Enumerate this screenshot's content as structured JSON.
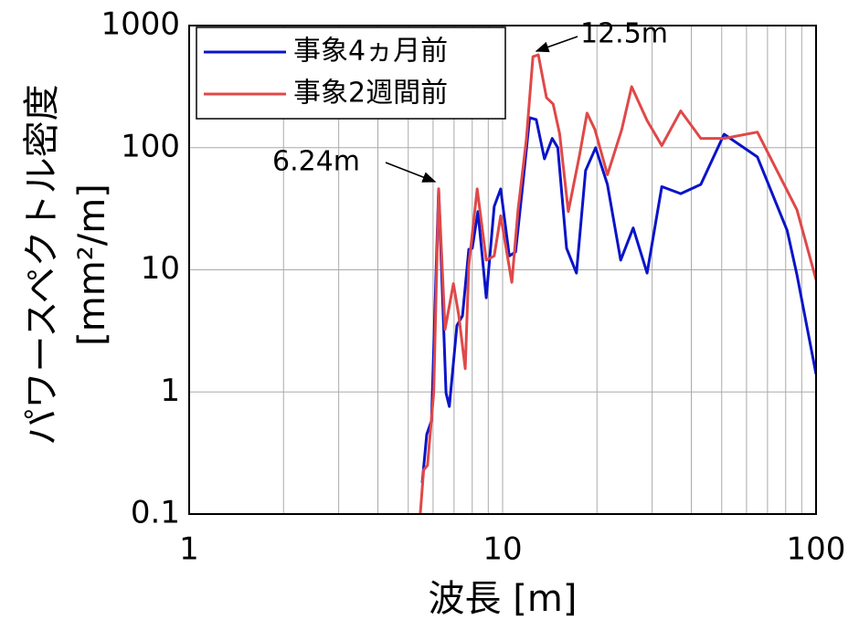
{
  "chart_data": {
    "type": "line",
    "xlabel": "波長 [m]",
    "ylabel": [
      "パワースペクトル密度",
      "[mm²/m]"
    ],
    "xscale": "log",
    "yscale": "log",
    "xlim": [
      1,
      100
    ],
    "ylim": [
      0.1,
      1000
    ],
    "xticks": [
      1,
      10,
      100
    ],
    "yticks": [
      0.1,
      1,
      10,
      100,
      1000
    ],
    "grid": true,
    "legend": "upper left",
    "annotations": [
      "12.5m",
      "6.24m"
    ],
    "series": [
      {
        "name": "事象4ヵ月前",
        "color": "#0a14c8",
        "x": [
          5.54,
          5.73,
          5.93,
          6.25,
          6.6,
          6.76,
          7.15,
          7.45,
          7.8,
          8.0,
          8.34,
          8.87,
          9.4,
          9.86,
          10.5,
          11.0,
          11.6,
          12.2,
          12.8,
          13.6,
          14.4,
          15.0,
          16.0,
          17.2,
          18.4,
          19.8,
          21.6,
          23.8,
          26.1,
          28.9,
          32.2,
          37.0,
          42.9,
          50.9,
          65,
          80.9,
          86.9,
          100
        ],
        "values": [
          0.18,
          0.45,
          0.58,
          46,
          0.98,
          0.76,
          3.5,
          4.2,
          14.7,
          15,
          30,
          5.9,
          33,
          46,
          13,
          14,
          50,
          176,
          170,
          81,
          119,
          100,
          15,
          9.4,
          65,
          100,
          50,
          12,
          22,
          9.4,
          48,
          42,
          50,
          129,
          84,
          21,
          9.1,
          1.4
        ]
      },
      {
        "name": "事象2週間前",
        "color": "#e04848",
        "x": [
          5.46,
          5.6,
          5.76,
          6.03,
          6.25,
          6.55,
          6.97,
          7.25,
          7.6,
          7.8,
          8.3,
          8.87,
          9.4,
          9.86,
          10.7,
          11.2,
          11.9,
          12.5,
          13.0,
          13.8,
          14.5,
          15.2,
          16.2,
          17.6,
          18.6,
          19.7,
          21.6,
          24.0,
          25.8,
          28.9,
          32.2,
          37.0,
          42.9,
          50.9,
          65,
          86.9,
          100
        ],
        "values": [
          0.1,
          0.23,
          0.25,
          0.98,
          46,
          3.25,
          7.7,
          4.2,
          1.55,
          10.8,
          46,
          12,
          13,
          27.7,
          7.9,
          31,
          115,
          556,
          575,
          257,
          228,
          130,
          30,
          87,
          192,
          141,
          60,
          141,
          316,
          167,
          104,
          200,
          119,
          119,
          134,
          31,
          8.3
        ]
      }
    ]
  }
}
